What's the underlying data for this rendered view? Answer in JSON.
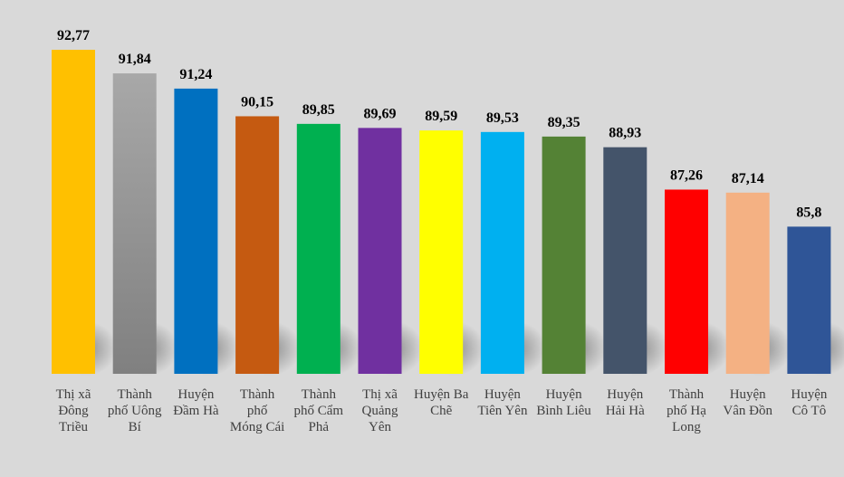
{
  "chart_data": {
    "type": "bar",
    "title": "",
    "xlabel": "",
    "ylabel": "",
    "ylim": [
      80,
      93
    ],
    "grid": false,
    "legend": "none",
    "categories": [
      [
        "Thị xã",
        "Đông",
        "Triều"
      ],
      [
        "Thành",
        "phố Uông",
        "Bí"
      ],
      [
        "Huyện",
        "Đầm Hà"
      ],
      [
        "Thành",
        "phố",
        "Móng Cái"
      ],
      [
        "Thành",
        "phố Cẩm",
        "Phả"
      ],
      [
        "Thị xã",
        "Quảng",
        "Yên"
      ],
      [
        "Huyện Ba",
        "Chẽ"
      ],
      [
        "Huyện",
        "Tiên Yên"
      ],
      [
        "Huyện",
        "Bình Liêu"
      ],
      [
        "Huyện",
        "Hải Hà"
      ],
      [
        "Thành",
        "phố Hạ",
        "Long"
      ],
      [
        "Huyện",
        "Vân Đồn"
      ],
      [
        "Huyện",
        "Cô Tô"
      ]
    ],
    "values": [
      92.77,
      91.84,
      91.24,
      90.15,
      89.85,
      89.69,
      89.59,
      89.53,
      89.35,
      88.93,
      87.26,
      87.14,
      85.8
    ],
    "value_labels": [
      "92,77",
      "91,84",
      "91,24",
      "90,15",
      "89,85",
      "89,69",
      "89,59",
      "89,53",
      "89,35",
      "88,93",
      "87,26",
      "87,14",
      "85,8"
    ],
    "colors": [
      "#ffc000",
      "#a0a0a0",
      "#0070c0",
      "#c55a11",
      "#00b050",
      "#7030a0",
      "#ffff00",
      "#00b0f0",
      "#548235",
      "#44546a",
      "#ff0000",
      "#f4b183",
      "#2f5597"
    ]
  }
}
